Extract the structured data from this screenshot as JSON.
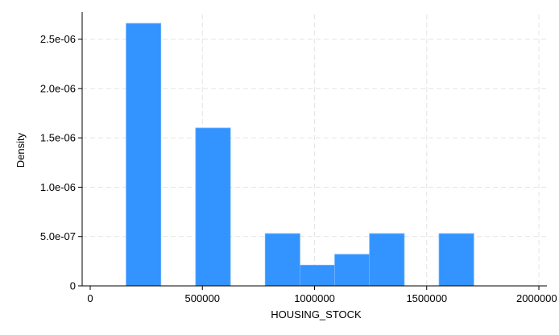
{
  "chart_data": {
    "type": "bar",
    "title": "",
    "xlabel": "HOUSING_STOCK",
    "ylabel": "Density",
    "xlim": [
      -20000,
      2000000
    ],
    "ylim": [
      0,
      2.75e-06
    ],
    "grid": true,
    "x_ticks": [
      {
        "value": 0,
        "label": "0"
      },
      {
        "value": 500000,
        "label": "500000"
      },
      {
        "value": 1000000,
        "label": "1000000"
      },
      {
        "value": 1500000,
        "label": "1500000"
      },
      {
        "value": 2000000,
        "label": "2000000"
      }
    ],
    "y_ticks": [
      {
        "value": 0,
        "label": "0"
      },
      {
        "value": 5e-07,
        "label": "5.0e-07"
      },
      {
        "value": 1e-06,
        "label": "1.0e-06"
      },
      {
        "value": 1.5e-06,
        "label": "1.5e-06"
      },
      {
        "value": 2e-06,
        "label": "2.0e-06"
      },
      {
        "value": 2.5e-06,
        "label": "2.5e-06"
      }
    ],
    "bins": [
      {
        "x0": 160000,
        "x1": 315000,
        "density": 2.66e-06
      },
      {
        "x0": 470000,
        "x1": 625000,
        "density": 1.6e-06
      },
      {
        "x0": 780000,
        "x1": 935000,
        "density": 5.3e-07
      },
      {
        "x0": 935000,
        "x1": 1090000,
        "density": 2.1e-07
      },
      {
        "x0": 1090000,
        "x1": 1245000,
        "density": 3.2e-07
      },
      {
        "x0": 1245000,
        "x1": 1400000,
        "density": 5.3e-07
      },
      {
        "x0": 1555000,
        "x1": 1710000,
        "density": 5.3e-07
      }
    ],
    "colors": {
      "bar": "#3393ff",
      "bar_edge": "#6fb2ff",
      "grid": "#e4e4e4",
      "axis": "#000000"
    }
  }
}
